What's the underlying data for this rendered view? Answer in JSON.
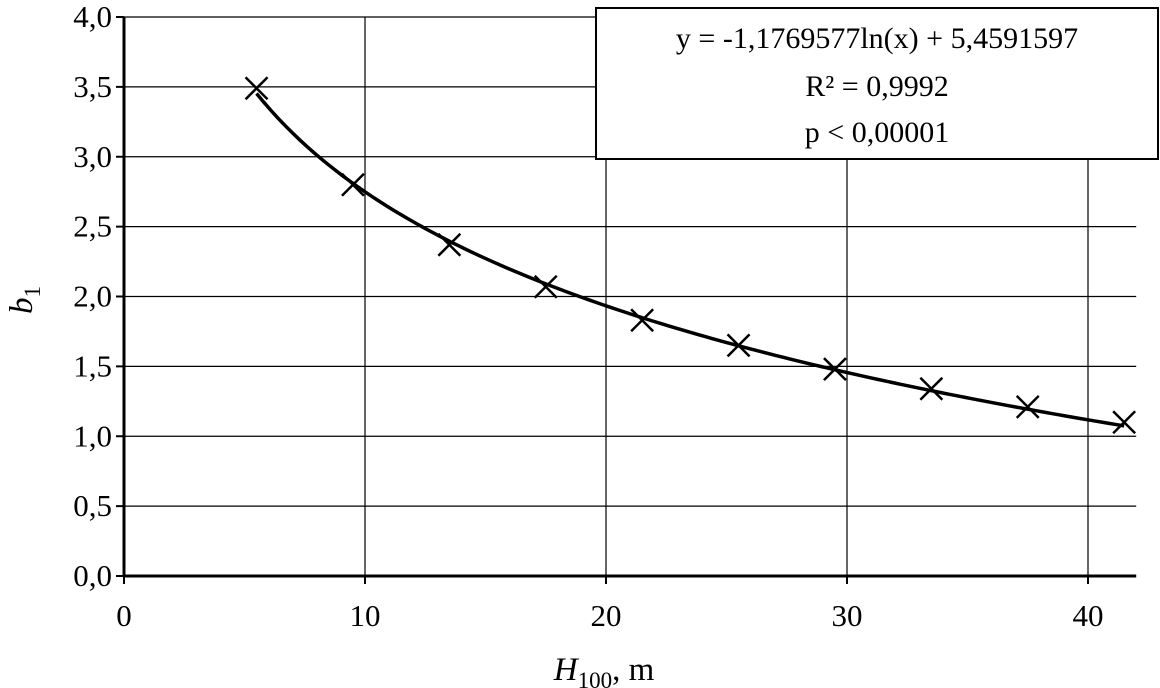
{
  "chart_data": {
    "type": "scatter",
    "title": "",
    "xlabel": {
      "main": "H",
      "sub": "100",
      "suffix": ", m"
    },
    "ylabel": {
      "main": "b",
      "sub": "1"
    },
    "xlim": [
      0,
      42
    ],
    "ylim": [
      0,
      4
    ],
    "x_ticks": [
      0,
      10,
      20,
      30,
      40
    ],
    "x_tick_labels": [
      "0",
      "10",
      "20",
      "30",
      "40"
    ],
    "y_ticks": [
      0,
      0.5,
      1,
      1.5,
      2,
      2.5,
      3,
      3.5,
      4
    ],
    "y_tick_labels": [
      "0,0",
      "0,5",
      "1,0",
      "1,5",
      "2,0",
      "2,5",
      "3,0",
      "3,5",
      "4,0"
    ],
    "grid": true,
    "marker": "x",
    "series": [
      {
        "x": [
          5.5,
          9.5,
          13.5,
          17.5,
          21.5,
          25.5,
          29.5,
          33.5,
          37.5,
          41.5
        ],
        "y": [
          3.49,
          2.8,
          2.37,
          2.07,
          1.83,
          1.65,
          1.48,
          1.34,
          1.21,
          1.1
        ]
      }
    ],
    "trendline": {
      "type": "logarithmic",
      "a": -1.1769577,
      "b": 5.4591597,
      "x_range": [
        5.5,
        41.5
      ]
    },
    "annotation": {
      "lines": [
        "y = -1,1769577ln(x)  + 5,4591597",
        "R² = 0,9992",
        "p < 0,00001"
      ],
      "position": "top-right"
    }
  }
}
